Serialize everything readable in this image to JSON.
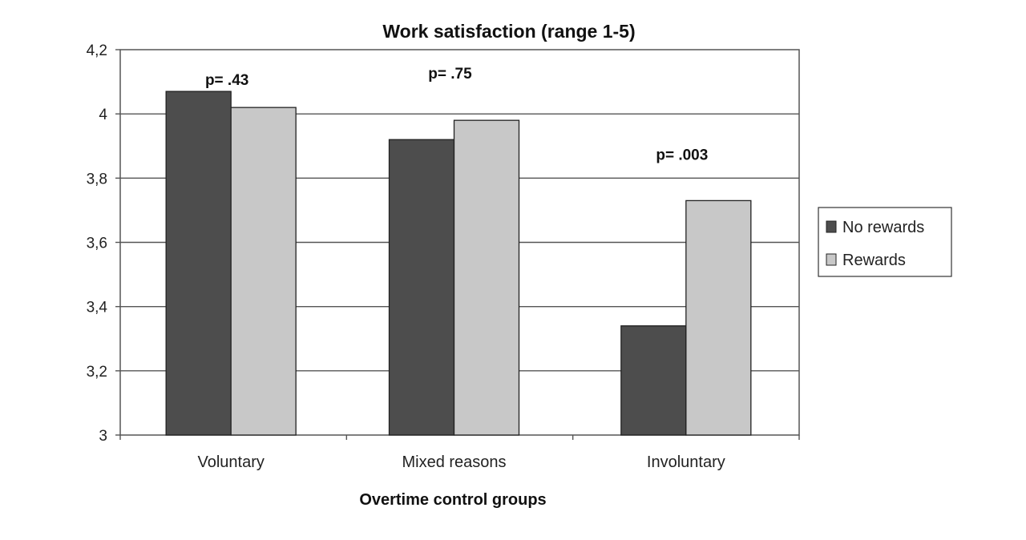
{
  "chart_data": {
    "type": "bar",
    "title": "Work satisfaction (range 1-5)",
    "xlabel": "Overtime control groups",
    "ylabel": "",
    "ylim": [
      3,
      4.2
    ],
    "yticks": [
      "3",
      "3,2",
      "3,4",
      "3,6",
      "3,8",
      "4",
      "4,2"
    ],
    "grid": true,
    "legend_position": "right",
    "categories": [
      "Voluntary",
      "Mixed reasons",
      "Involuntary"
    ],
    "series": [
      {
        "name": "No rewards",
        "color": "#4d4d4d",
        "values": [
          4.07,
          3.92,
          3.34
        ]
      },
      {
        "name": "Rewards",
        "color": "#c8c8c8",
        "values": [
          4.02,
          3.98,
          3.73
        ]
      }
    ],
    "annotations": [
      "p= .43",
      "p= .75",
      "p= .003"
    ]
  }
}
